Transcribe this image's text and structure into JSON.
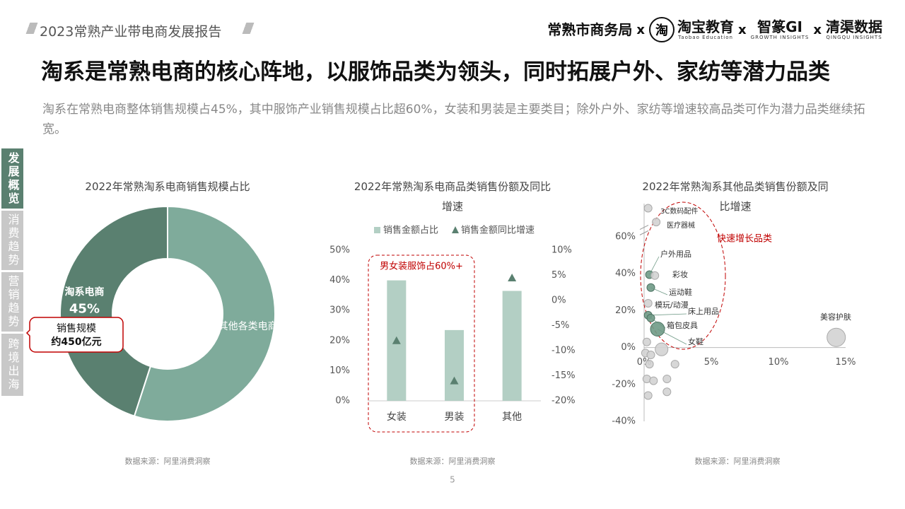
{
  "header": {
    "report_title": "2023常熟产业带电商发展报告",
    "separator": "x",
    "partners": [
      {
        "name": "常熟市商务局"
      },
      {
        "logo": "淘",
        "name": "淘宝教育",
        "sub": "Taobao Education"
      },
      {
        "name": "智篆GI",
        "sub": "GROWTH INSIGHTS"
      },
      {
        "name": "清渠数据",
        "sub": "QINGQU INSIGHTS"
      }
    ],
    "title": "淘系是常熟电商的核心阵地，以服饰品类为领头，同时拓展户外、家纺等潜力品类",
    "subtitle": "淘系在常熟电商整体销售规模占45%，其中服饰产业销售规模占比超60%，女装和男装是主要类目；除外户外、家纺等增速较高品类可作为潜力品类继续拓宽。"
  },
  "nav": [
    "发展概览",
    "消费趋势",
    "营销趋势",
    "跨境出海"
  ],
  "page_number": "5",
  "chart_data": [
    {
      "type": "pie",
      "title": "2022年常熟淘系电商销售规模占比",
      "categories": [
        "淘系电商",
        "其他各类电商"
      ],
      "values": [
        45,
        55
      ],
      "value_labels": [
        "45%",
        null
      ],
      "colors": [
        "#5a8070",
        "#7fab9b"
      ],
      "annotation": [
        "销售规模",
        "约450亿元"
      ],
      "source": "数据来源：阿里消费洞察"
    },
    {
      "type": "bar",
      "title": "2022年常熟淘系电商品类销售份额及同比增速",
      "categories": [
        "女装",
        "男装",
        "其他"
      ],
      "series": [
        {
          "name": "销售金额占比",
          "color": "#b3cfc4",
          "values": [
            40,
            23.5,
            36.5
          ]
        },
        {
          "name": "销售金额同比增速",
          "color": "#5a8070",
          "axis": "y2",
          "values": [
            -8,
            -16,
            4.5
          ]
        }
      ],
      "ylim": [
        0,
        50
      ],
      "yticks": [
        {
          "value": 0,
          "label": "0%"
        },
        {
          "value": 10,
          "label": "10%"
        },
        {
          "value": 20,
          "label": "20%"
        },
        {
          "value": 30,
          "label": "30%"
        },
        {
          "value": 40,
          "label": "40%"
        },
        {
          "value": 50,
          "label": "50%"
        }
      ],
      "y2lim": [
        -20,
        10
      ],
      "y2ticks": [
        {
          "value": -20,
          "label": "-20%"
        },
        {
          "value": -15,
          "label": "-15%"
        },
        {
          "value": -10,
          "label": "-10%"
        },
        {
          "value": -5,
          "label": "-5%"
        },
        {
          "value": 0,
          "label": "0%"
        },
        {
          "value": 5,
          "label": "5%"
        },
        {
          "value": 10,
          "label": "10%"
        }
      ],
      "annotation": "男女装服饰占60%+",
      "source": "数据来源：阿里消费洞察"
    },
    {
      "type": "scatter",
      "title": "2022年常熟淘系其他品类销售份额及同比增速",
      "x": [
        0.3,
        0.9,
        0.4,
        0.8,
        0.5,
        0.3,
        0.3,
        0.5,
        1.0,
        14.3,
        0.2,
        1.3,
        0.1,
        0.5,
        0.4,
        2.3,
        0.2,
        0.7,
        1.7,
        1.7,
        0.3
      ],
      "y": [
        75.5,
        68,
        39.5,
        39,
        32.5,
        24,
        17.5,
        16,
        10,
        5.5,
        3,
        -1,
        -3,
        -4,
        -9,
        -9,
        -17,
        -18,
        -17,
        -24,
        -26
      ],
      "sizes": [
        1,
        1,
        1,
        1,
        1,
        1,
        1,
        1,
        3.3,
        5.6,
        1,
        2.7,
        1,
        1,
        1,
        1,
        1,
        1,
        1,
        1,
        1
      ],
      "colors": [
        "#d3d3d3",
        "#d3d3d3",
        "#6f9a86",
        "#d3d3d3",
        "#6f9a86",
        "#d3d3d3",
        "#6f9a86",
        "#6f9a86",
        "#6f9a86",
        "#d3d3d3",
        "#d3d3d3",
        "#d3d3d3",
        "#d3d3d3",
        "#d3d3d3",
        "#d3d3d3",
        "#d3d3d3",
        "#d3d3d3",
        "#d3d3d3",
        "#d3d3d3",
        "#d3d3d3",
        "#d3d3d3"
      ],
      "labels": [
        "3C数码配件",
        "医疗器械",
        "户外用品",
        "彩妆",
        "运动鞋",
        "模玩/动漫",
        "床上用品",
        "箱包皮具",
        "女鞋",
        "美容护肤",
        null,
        null,
        null,
        null,
        null,
        null,
        null,
        null,
        null,
        null,
        null
      ],
      "xlim": [
        0,
        15
      ],
      "xticks": [
        {
          "value": 0,
          "label": "0%"
        },
        {
          "value": 5,
          "label": "5%"
        },
        {
          "value": 10,
          "label": "10%"
        },
        {
          "value": 15,
          "label": "15%"
        }
      ],
      "ylim": [
        -40,
        78
      ],
      "yticks": [
        {
          "value": -40,
          "label": "-40%"
        },
        {
          "value": -20,
          "label": "-20%"
        },
        {
          "value": 0,
          "label": "0%"
        },
        {
          "value": 20,
          "label": "20%"
        },
        {
          "value": 40,
          "label": "40%"
        },
        {
          "value": 60,
          "label": "60%"
        }
      ],
      "annotation": "快速增长品类",
      "source": "数据来源：阿里消费洞察"
    }
  ]
}
